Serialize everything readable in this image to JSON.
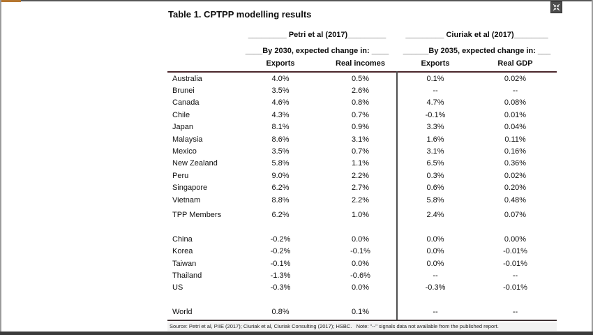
{
  "icons": {
    "top_right": "collapse-icon"
  },
  "frame": {
    "accent_color": "#b5762f",
    "bar_color": "#3b3b3b"
  },
  "table": {
    "title": "Table 1. CPTPP modelling results",
    "rule_color": "#4a262b",
    "groups": [
      {
        "label": "_________ Petri et al (2017)_________",
        "sublabel": "____By 2030, expected change in: ____",
        "columns": [
          "Exports",
          "Real incomes"
        ]
      },
      {
        "label": "_________ Ciuriak et al (2017)________",
        "sublabel": "______By 2035, expected change in: ___",
        "columns": [
          "Exports",
          "Real GDP"
        ]
      }
    ],
    "row_groups": [
      [
        {
          "label": "Australia",
          "values": [
            "4.0%",
            "0.5%",
            "0.1%",
            "0.02%"
          ]
        },
        {
          "label": "Brunei",
          "values": [
            "3.5%",
            "2.6%",
            "--",
            "--"
          ]
        },
        {
          "label": "Canada",
          "values": [
            "4.6%",
            "0.8%",
            "4.7%",
            "0.08%"
          ]
        },
        {
          "label": "Chile",
          "values": [
            "4.3%",
            "0.7%",
            "-0.1%",
            "0.01%"
          ]
        },
        {
          "label": "Japan",
          "values": [
            "8.1%",
            "0.9%",
            "3.3%",
            "0.04%"
          ]
        },
        {
          "label": "Malaysia",
          "values": [
            "8.6%",
            "3.1%",
            "1.6%",
            "0.11%"
          ]
        },
        {
          "label": "Mexico",
          "values": [
            "3.5%",
            "0.7%",
            "3.1%",
            "0.16%"
          ]
        },
        {
          "label": "New Zealand",
          "values": [
            "5.8%",
            "1.1%",
            "6.5%",
            "0.36%"
          ]
        },
        {
          "label": "Peru",
          "values": [
            "9.0%",
            "2.2%",
            "0.3%",
            "0.02%"
          ]
        },
        {
          "label": "Singapore",
          "values": [
            "6.2%",
            "2.7%",
            "0.6%",
            "0.20%"
          ]
        },
        {
          "label": "Vietnam",
          "values": [
            "8.8%",
            "2.2%",
            "5.8%",
            "0.48%"
          ]
        }
      ],
      [
        {
          "label": "TPP Members",
          "values": [
            "6.2%",
            "1.0%",
            "2.4%",
            "0.07%"
          ]
        }
      ],
      [
        {
          "label": "China",
          "values": [
            "-0.2%",
            "0.0%",
            "0.0%",
            "0.00%"
          ]
        },
        {
          "label": "Korea",
          "values": [
            "-0.2%",
            "-0.1%",
            "0.0%",
            "-0.01%"
          ]
        },
        {
          "label": "Taiwan",
          "values": [
            "-0.1%",
            "0.0%",
            "0.0%",
            "-0.01%"
          ]
        },
        {
          "label": "Thailand",
          "values": [
            "-1.3%",
            "-0.6%",
            "--",
            "--"
          ]
        },
        {
          "label": "US",
          "values": [
            "-0.3%",
            "0.0%",
            "-0.3%",
            "-0.01%"
          ]
        }
      ],
      [
        {
          "label": "World",
          "values": [
            "0.8%",
            "0.1%",
            "--",
            "--"
          ]
        }
      ]
    ],
    "source": "Source: Petri et al, PIIE (2017); Ciuriak et al, Ciuriak Consulting (2017); HSBC.   Note: \"--\" signals data not available from the published report."
  }
}
